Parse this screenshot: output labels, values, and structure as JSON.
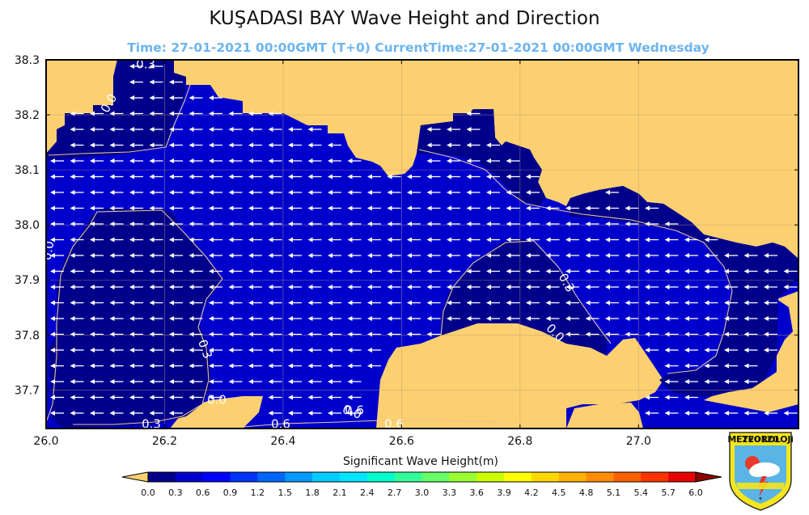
{
  "chart_data": {
    "type": "map",
    "title": "KUŞADASI BAY Wave Height and Direction",
    "subtitle": "Time: 27-01-2021 00:00GMT (T+0)  CurrentTime:27-01-2021 00:00GMT Wednesday",
    "xlim": [
      26.0,
      27.27
    ],
    "ylim": [
      37.63,
      38.3
    ],
    "x_ticks": [
      "26.0",
      "26.2",
      "26.4",
      "26.6",
      "26.8",
      "27.0"
    ],
    "y_ticks": [
      "38.3",
      "38.2",
      "38.1",
      "38.0",
      "37.9",
      "37.8",
      "37.7"
    ],
    "grid": true,
    "colorbar": {
      "label": "Significant Wave Height(m)",
      "ticks": [
        "0.0",
        "0.3",
        "0.6",
        "0.9",
        "1.2",
        "1.5",
        "1.8",
        "2.1",
        "2.4",
        "2.7",
        "3.0",
        "3.3",
        "3.6",
        "3.9",
        "4.2",
        "4.5",
        "4.8",
        "5.1",
        "5.4",
        "5.7",
        "6.0"
      ],
      "colors": [
        "#00008b",
        "#0000cd",
        "#0000ff",
        "#0033ff",
        "#0066ff",
        "#0099ff",
        "#00ccff",
        "#00e5ff",
        "#00ffcc",
        "#33ff99",
        "#66ff66",
        "#99ff33",
        "#ccff00",
        "#ffff00",
        "#ffd700",
        "#ffb000",
        "#ff8c00",
        "#ff6000",
        "#ff3300",
        "#e60000",
        "#b30000"
      ],
      "under_color": "#fcd070",
      "over_color": "#8b0000"
    },
    "contour_labels": [
      "0.3",
      "0.0",
      "0.0",
      "0.6",
      "0.6",
      "0.3",
      "0.0",
      "0.3",
      "0.0",
      "0.3",
      "0.0",
      "0.6",
      "0.0",
      "0.6",
      "0.3",
      "0.6",
      "0.3"
    ],
    "wave_direction": "west",
    "colors": {
      "land": "#fcd070",
      "sea_low": "#00008b",
      "sea_mid": "#0000cd",
      "arrow": "#ffffff",
      "subtitle": "#6cb4f0"
    }
  },
  "logo": {
    "text": "METEOROLOJi",
    "overlay": "270120"
  }
}
